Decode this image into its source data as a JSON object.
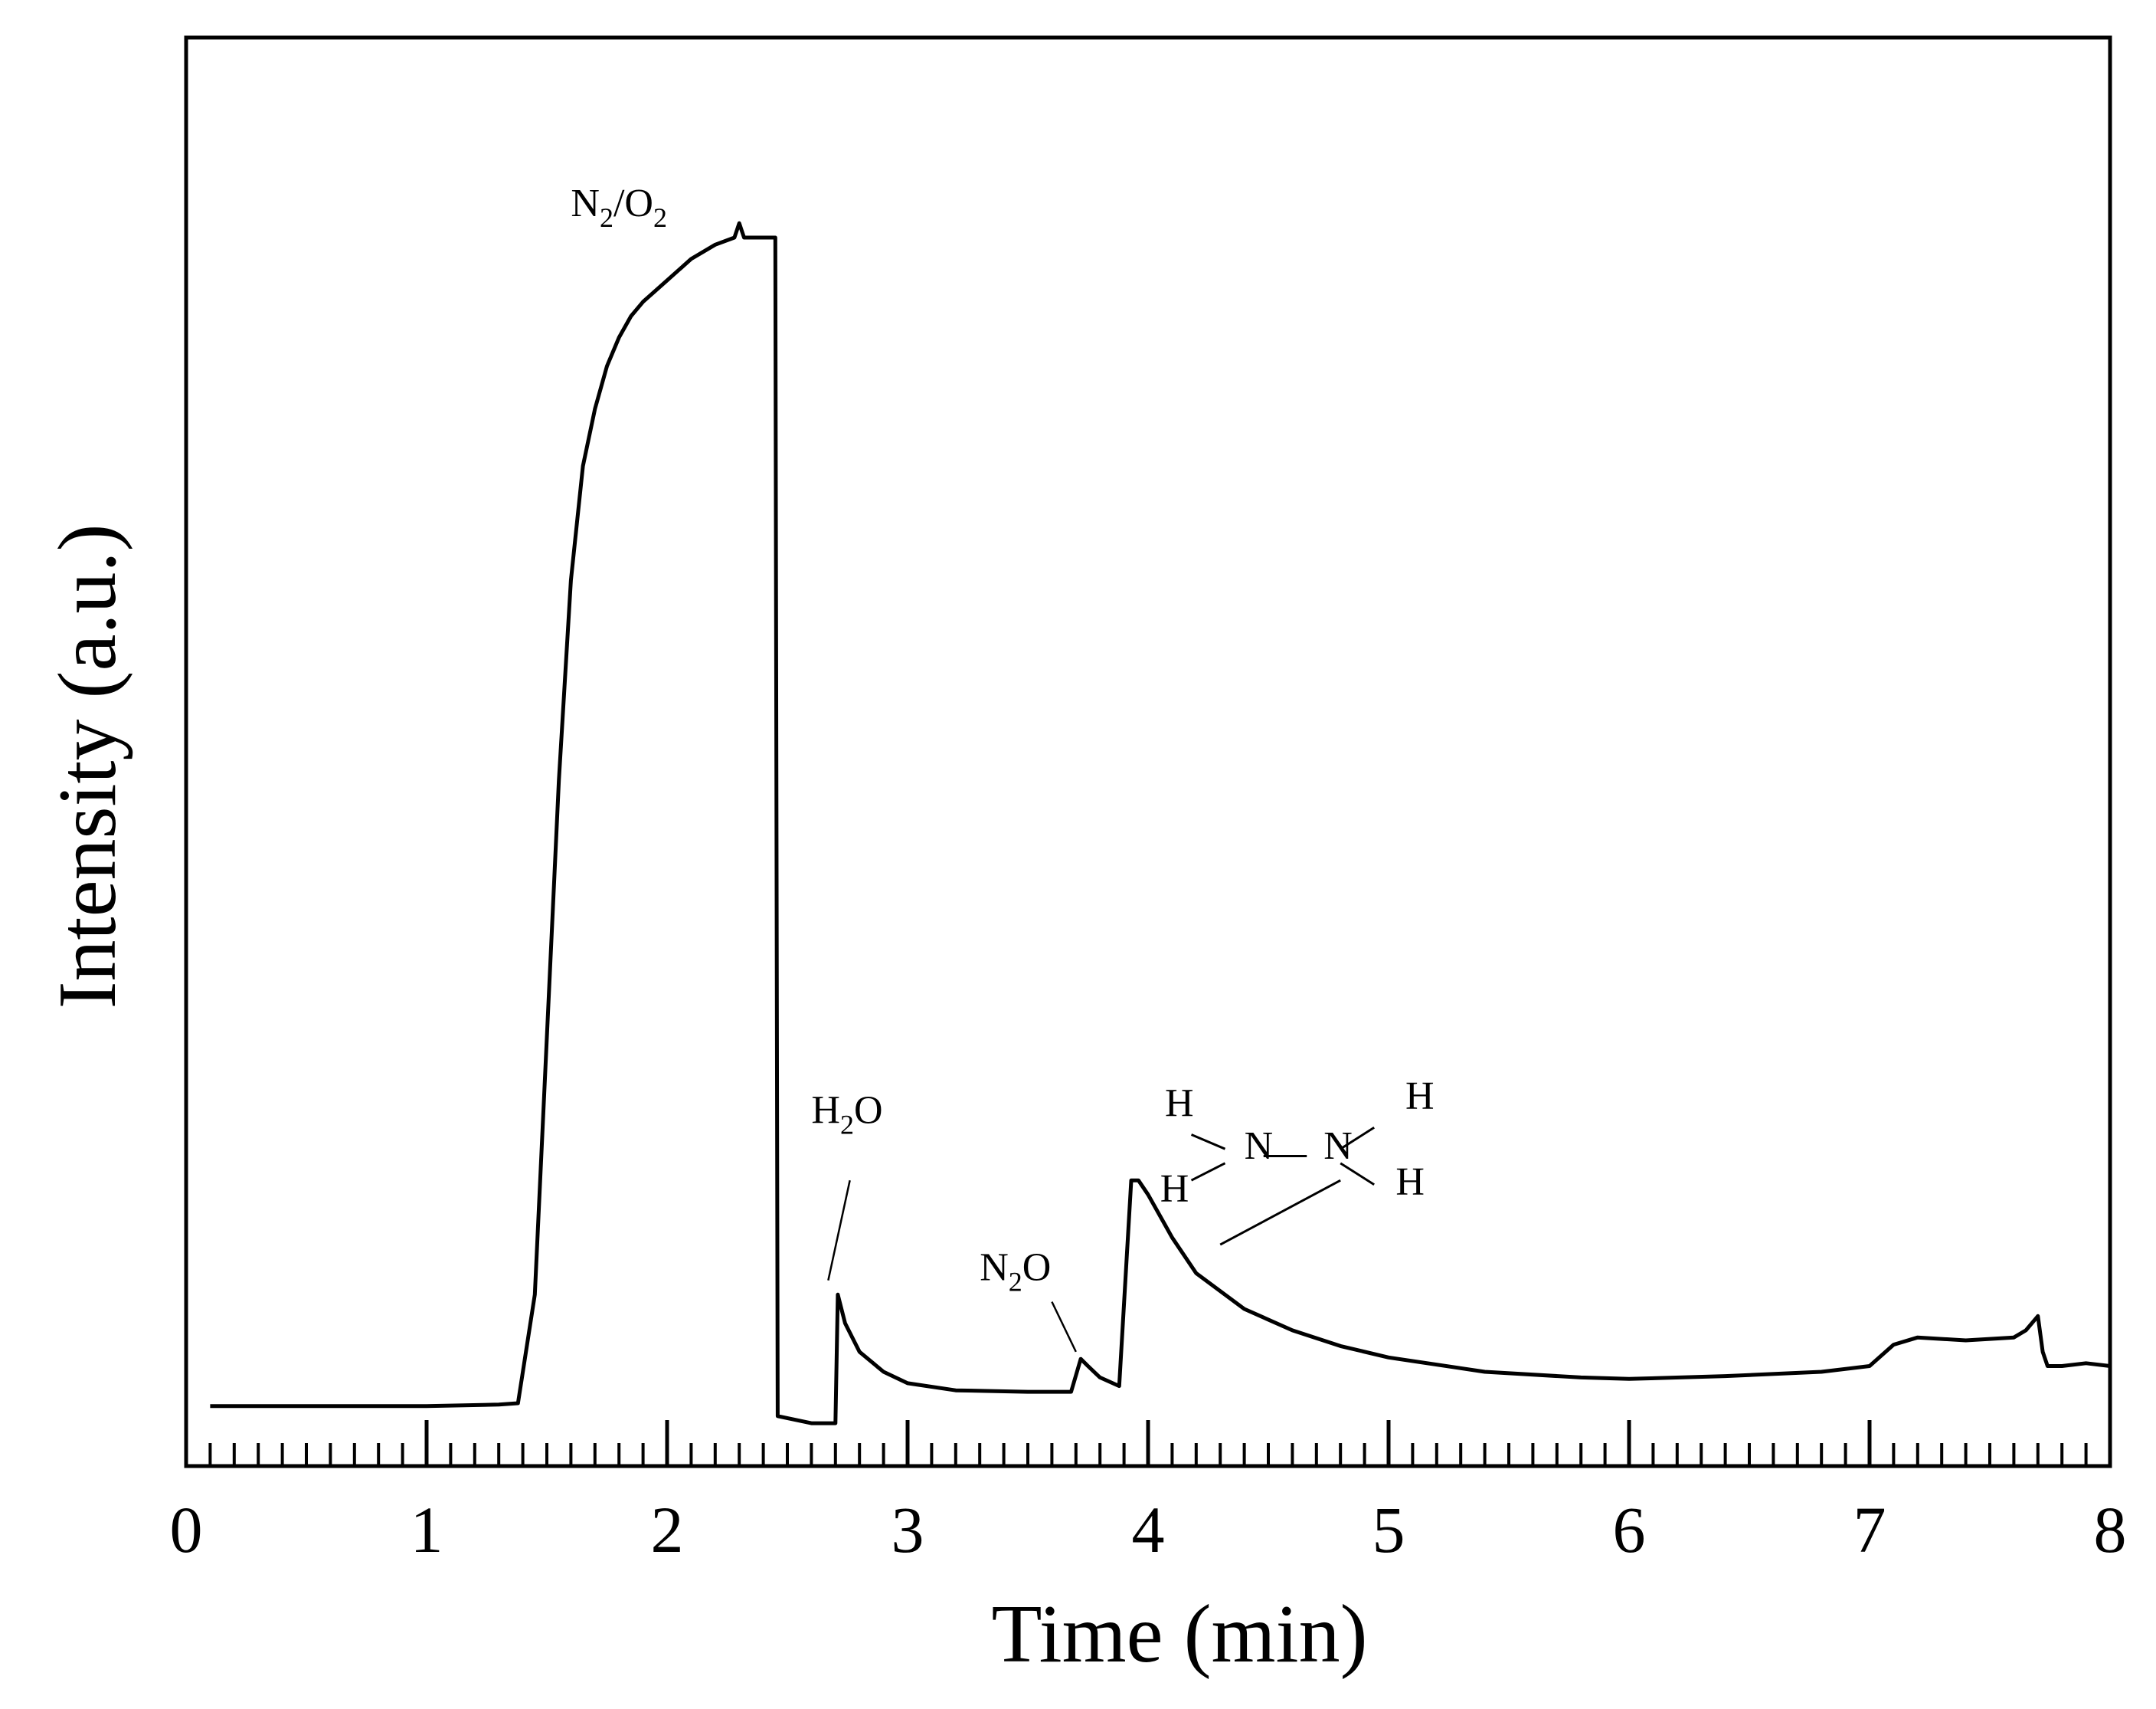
{
  "chart_data": {
    "type": "line",
    "title": "",
    "xlabel": "Time (min)",
    "ylabel": "Intensity (a.u.)",
    "xlim": [
      0,
      8
    ],
    "ylim": [
      0,
      1
    ],
    "x_ticks": [
      "0",
      "1",
      "2",
      "3",
      "4",
      "5",
      "6",
      "7",
      "8"
    ],
    "x_minor_step": 0.1,
    "y_ticks": [],
    "grid": false,
    "legend": "none",
    "series": [
      {
        "color": "#000000",
        "x": [
          0.1,
          0.5,
          1.0,
          1.3,
          1.38,
          1.45,
          1.5,
          1.55,
          1.6,
          1.65,
          1.7,
          1.75,
          1.8,
          1.85,
          1.9,
          2.0,
          2.1,
          2.2,
          2.28,
          2.3,
          2.32,
          2.34,
          2.45,
          2.46,
          2.6,
          2.7,
          2.71,
          2.74,
          2.8,
          2.9,
          3.0,
          3.2,
          3.5,
          3.68,
          3.72,
          3.75,
          3.8,
          3.88,
          3.93,
          3.96,
          4.0,
          4.1,
          4.2,
          4.4,
          4.6,
          4.8,
          5.0,
          5.4,
          5.8,
          6.0,
          6.4,
          6.8,
          7.0,
          7.1,
          7.2,
          7.4,
          7.6,
          7.65,
          7.7,
          7.72,
          7.74,
          7.8,
          7.9,
          8.0
        ],
        "y": [
          0.042,
          0.042,
          0.042,
          0.043,
          0.044,
          0.12,
          0.3,
          0.48,
          0.62,
          0.7,
          0.74,
          0.77,
          0.79,
          0.805,
          0.815,
          0.83,
          0.845,
          0.855,
          0.86,
          0.87,
          0.86,
          0.86,
          0.86,
          0.035,
          0.03,
          0.03,
          0.12,
          0.1,
          0.08,
          0.066,
          0.058,
          0.053,
          0.052,
          0.052,
          0.075,
          0.07,
          0.062,
          0.056,
          0.2,
          0.2,
          0.19,
          0.16,
          0.135,
          0.11,
          0.095,
          0.084,
          0.076,
          0.066,
          0.062,
          0.061,
          0.063,
          0.066,
          0.07,
          0.085,
          0.09,
          0.088,
          0.09,
          0.095,
          0.105,
          0.08,
          0.07,
          0.07,
          0.072,
          0.07
        ]
      }
    ],
    "annotations": [
      {
        "parts": [
          [
            "N",
            ""
          ],
          [
            "2",
            "sub"
          ],
          [
            "/O",
            ""
          ],
          [
            "2",
            "sub"
          ]
        ],
        "x": 1.6,
        "y": 0.875,
        "pointer": null
      },
      {
        "parts": [
          [
            "H",
            ""
          ],
          [
            "2",
            "sub"
          ],
          [
            "O",
            ""
          ]
        ],
        "x": 2.6,
        "y": 0.24,
        "pointer": [
          2.76,
          0.2,
          2.67,
          0.13
        ]
      },
      {
        "parts": [
          [
            "N",
            ""
          ],
          [
            "2",
            "sub"
          ],
          [
            "O",
            ""
          ]
        ],
        "x": 3.3,
        "y": 0.13,
        "pointer": [
          3.6,
          0.115,
          3.7,
          0.08
        ]
      },
      {
        "parts": [
          [
            "H",
            ""
          ]
        ],
        "x": 4.07,
        "y": 0.245,
        "pointer": null
      },
      {
        "parts": [
          [
            "N",
            ""
          ]
        ],
        "x": 4.4,
        "y": 0.215,
        "pointer": null
      },
      {
        "parts": [
          [
            "N",
            ""
          ]
        ],
        "x": 4.73,
        "y": 0.215,
        "pointer": null
      },
      {
        "parts": [
          [
            "H",
            ""
          ]
        ],
        "x": 5.07,
        "y": 0.25,
        "pointer": null
      },
      {
        "parts": [
          [
            "H",
            ""
          ]
        ],
        "x": 4.05,
        "y": 0.185,
        "pointer": null
      },
      {
        "parts": [
          [
            "H",
            ""
          ]
        ],
        "x": 5.03,
        "y": 0.19,
        "pointer": null
      }
    ],
    "bonds": [
      [
        4.18,
        0.232,
        4.32,
        0.222
      ],
      [
        4.18,
        0.2,
        4.32,
        0.212
      ],
      [
        4.48,
        0.217,
        4.66,
        0.217
      ],
      [
        4.8,
        0.222,
        4.94,
        0.237
      ],
      [
        4.8,
        0.212,
        4.94,
        0.197
      ],
      [
        4.8,
        0.2,
        4.3,
        0.155
      ]
    ]
  }
}
